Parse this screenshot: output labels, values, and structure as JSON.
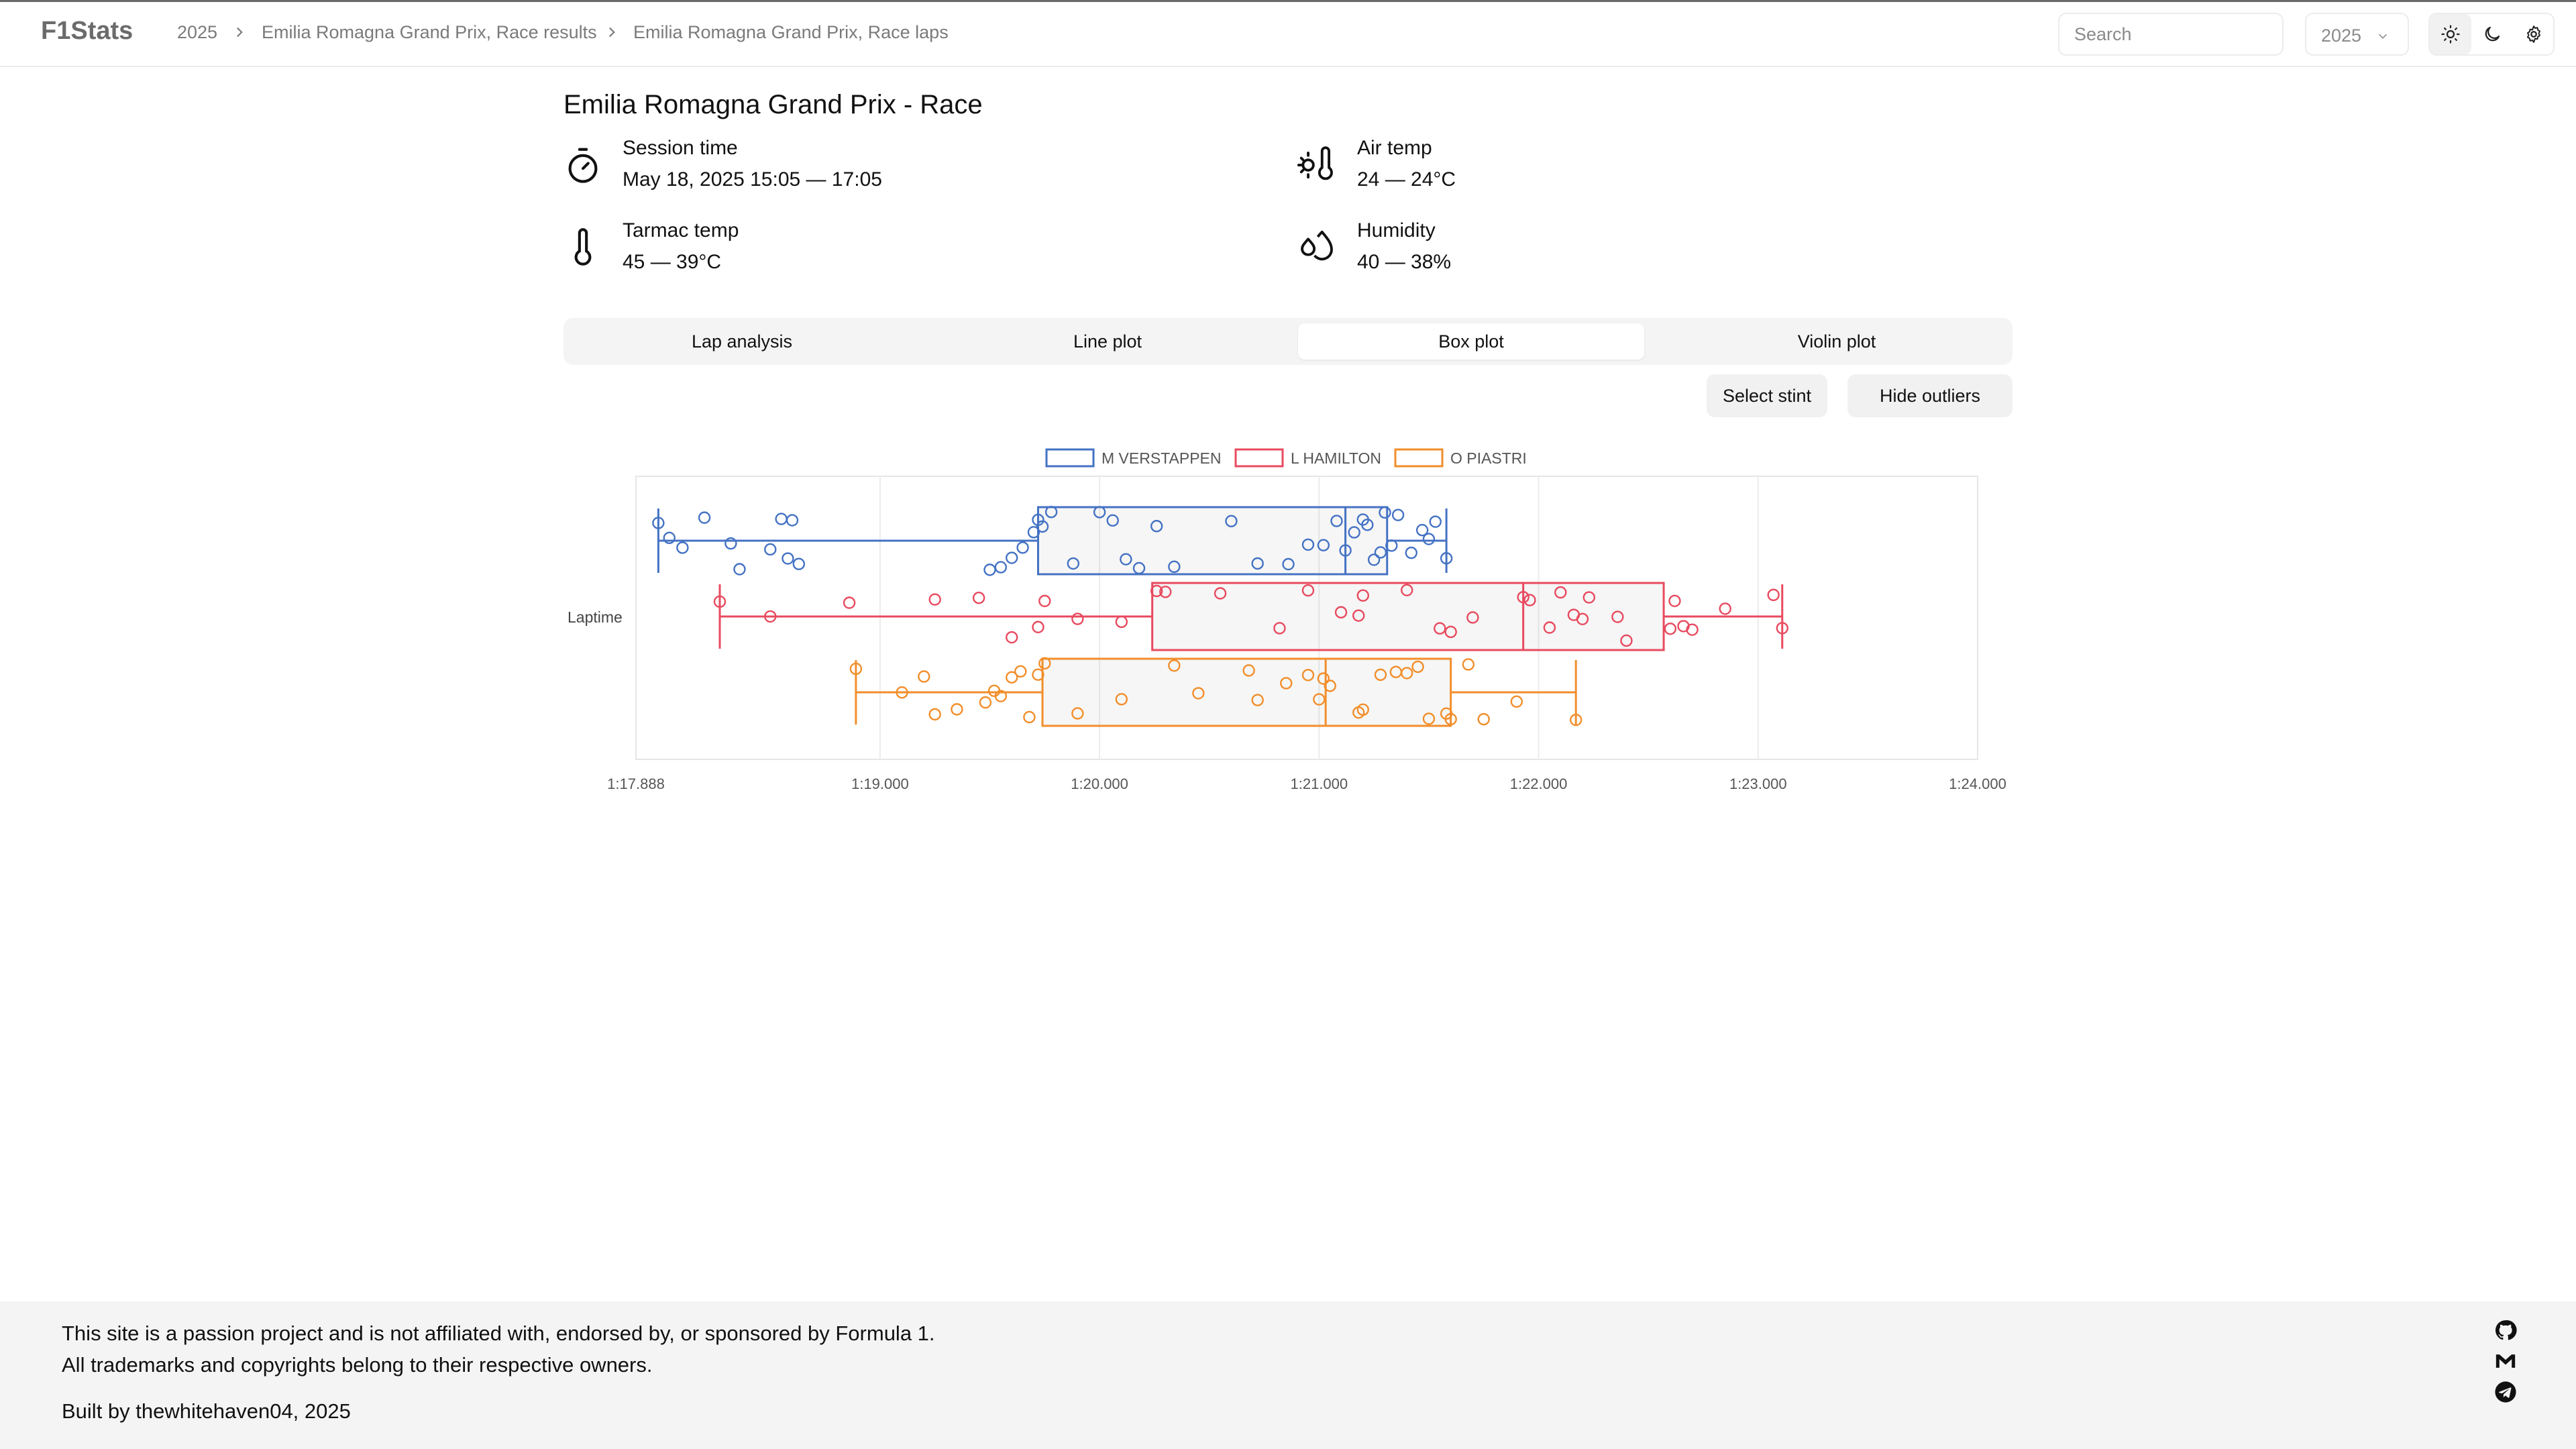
{
  "header": {
    "brand": "F1Stats",
    "breadcrumbs": [
      "2025",
      "Emilia Romagna Grand Prix, Race results",
      "Emilia Romagna Grand Prix, Race laps"
    ],
    "search_placeholder": "Search",
    "year": "2025",
    "theme_buttons": [
      "sun-icon",
      "moon-icon",
      "gear-icon"
    ]
  },
  "session": {
    "title": "Emilia Romagna Grand Prix - Race",
    "items": [
      {
        "icon": "stopwatch-icon",
        "label": "Session time",
        "value": "May 18, 2025 15:05 — 17:05"
      },
      {
        "icon": "sun-thermometer-icon",
        "label": "Air temp",
        "value": "24 — 24°C"
      },
      {
        "icon": "thermometer-icon",
        "label": "Tarmac temp",
        "value": "45 — 39°C"
      },
      {
        "icon": "droplets-icon",
        "label": "Humidity",
        "value": "40 — 38%"
      }
    ]
  },
  "tabs": [
    "Lap analysis",
    "Line plot",
    "Box plot",
    "Violin plot"
  ],
  "active_tab": "Box plot",
  "buttons": {
    "select_stint": "Select stint",
    "hide_outliers": "Hide outliers"
  },
  "chart_data": {
    "type": "box",
    "orientation": "horizontal",
    "ylabel": "Laptime",
    "x_ticks": [
      "1:17.888",
      "1:19.000",
      "1:20.000",
      "1:21.000",
      "1:22.000",
      "1:23.000",
      "1:24.000"
    ],
    "x_range": [
      77.888,
      84.0
    ],
    "grid": true,
    "legend_position": "top",
    "series": [
      {
        "name": "M VERSTAPPEN",
        "color": "#4472c4",
        "min": 77.99,
        "q1": 79.72,
        "median": 81.12,
        "q3": 81.31,
        "max": 81.58,
        "points": [
          77.99,
          78.04,
          78.1,
          78.2,
          78.32,
          78.36,
          78.5,
          78.55,
          78.58,
          78.6,
          78.63,
          79.5,
          79.55,
          79.6,
          79.65,
          79.7,
          79.72,
          79.74,
          79.78,
          79.88,
          80.0,
          80.06,
          80.12,
          80.18,
          80.26,
          80.34,
          80.6,
          80.72,
          80.86,
          80.95,
          81.02,
          81.08,
          81.12,
          81.16,
          81.2,
          81.22,
          81.25,
          81.28,
          81.3,
          81.33,
          81.36,
          81.42,
          81.47,
          81.5,
          81.53,
          81.58
        ]
      },
      {
        "name": "L HAMILTON",
        "color": "#e84a5f",
        "min": 78.27,
        "q1": 80.24,
        "median": 81.93,
        "q3": 82.57,
        "max": 83.11,
        "points": [
          78.27,
          78.5,
          78.86,
          79.25,
          79.45,
          79.6,
          79.72,
          79.75,
          79.9,
          80.1,
          80.26,
          80.3,
          80.55,
          80.82,
          80.95,
          81.1,
          81.18,
          81.2,
          81.4,
          81.55,
          81.6,
          81.7,
          81.93,
          81.96,
          82.05,
          82.1,
          82.16,
          82.2,
          82.23,
          82.36,
          82.4,
          82.6,
          82.62,
          82.66,
          82.7,
          82.85,
          83.07,
          83.11
        ]
      },
      {
        "name": "O PIASTRI",
        "color": "#f28e2b",
        "min": 78.89,
        "q1": 79.74,
        "median": 81.03,
        "q3": 81.6,
        "max": 82.17,
        "points": [
          78.89,
          79.1,
          79.2,
          79.25,
          79.35,
          79.48,
          79.52,
          79.55,
          79.6,
          79.64,
          79.68,
          79.72,
          79.75,
          79.9,
          80.1,
          80.34,
          80.45,
          80.68,
          80.72,
          80.85,
          80.95,
          81.0,
          81.02,
          81.05,
          81.18,
          81.2,
          81.28,
          81.35,
          81.4,
          81.45,
          81.5,
          81.58,
          81.6,
          81.68,
          81.75,
          81.9,
          82.17
        ]
      }
    ]
  },
  "footer": {
    "disclaimer_line1": "This site is a passion project and is not affiliated with, endorsed by, or sponsored by Formula 1.",
    "disclaimer_line2": "All trademarks and copyrights belong to their respective owners.",
    "credit": "Built by thewhitehaven04, 2025",
    "icons": [
      "github-icon",
      "mail-icon",
      "telegram-icon"
    ]
  }
}
